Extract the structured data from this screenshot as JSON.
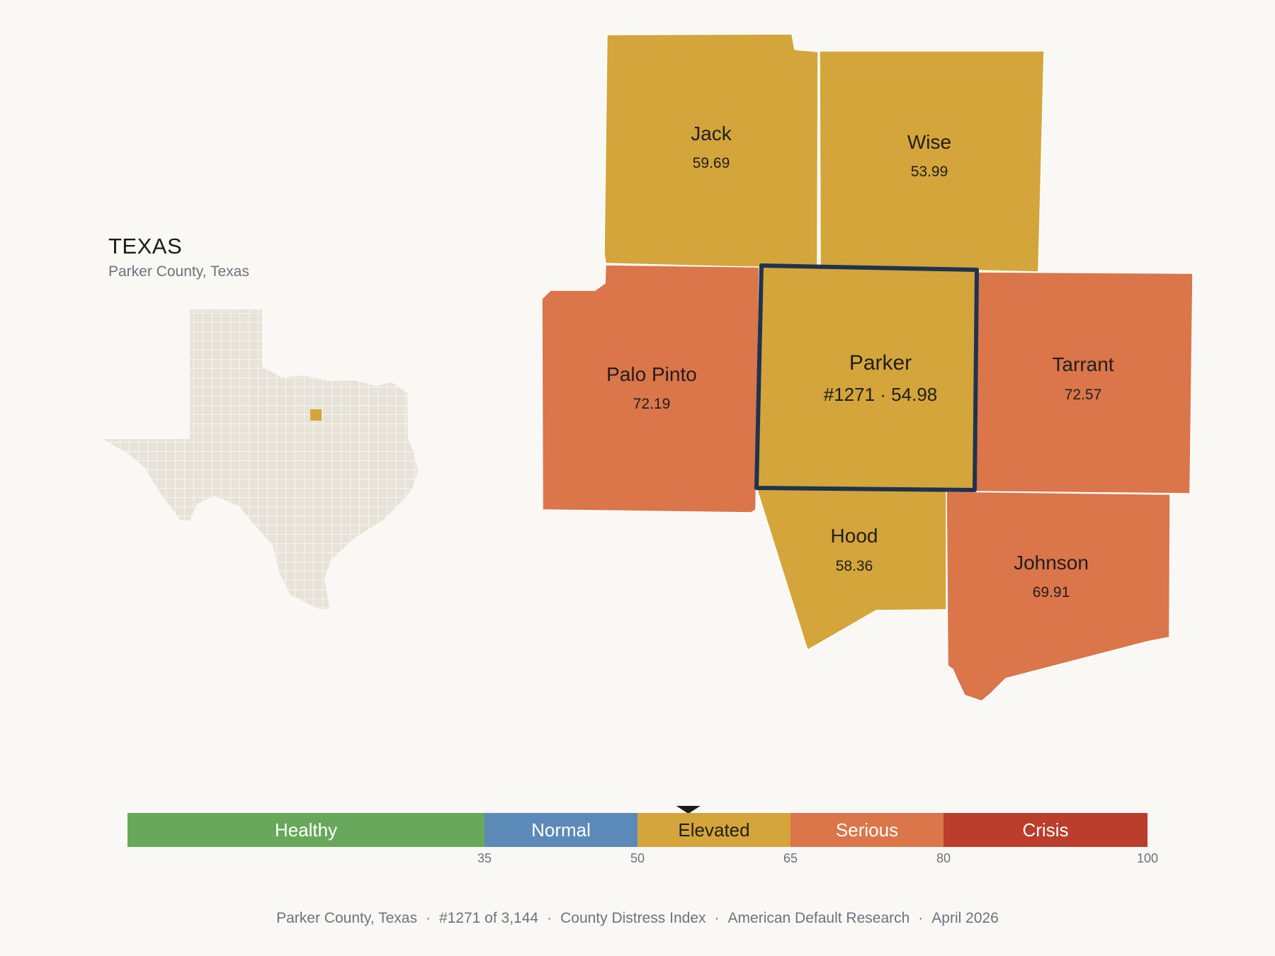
{
  "inset": {
    "state_title": "TEXAS",
    "subtitle": "Parker County, Texas"
  },
  "counties": [
    {
      "id": "jack",
      "name": "Jack",
      "value": "59.69",
      "color": "#d4a53a"
    },
    {
      "id": "wise",
      "name": "Wise",
      "value": "53.99",
      "color": "#d4a53a"
    },
    {
      "id": "palo-pinto",
      "name": "Palo Pinto",
      "value": "72.19",
      "color": "#db754a"
    },
    {
      "id": "parker",
      "name": "Parker",
      "value": "#1271 · 54.98",
      "color": "#d4a53a",
      "selected": true
    },
    {
      "id": "tarrant",
      "name": "Tarrant",
      "value": "72.57",
      "color": "#db754a"
    },
    {
      "id": "hood",
      "name": "Hood",
      "value": "58.36",
      "color": "#d4a53a"
    },
    {
      "id": "johnson",
      "name": "Johnson",
      "value": "69.91",
      "color": "#db754a"
    }
  ],
  "selected_outline_color": "#1f3350",
  "scale": {
    "min": 0,
    "max": 100,
    "marker_value": 54.98,
    "bands": [
      {
        "label": "Healthy",
        "from": 0,
        "to": 35,
        "color": "#67a85a"
      },
      {
        "label": "Normal",
        "from": 35,
        "to": 50,
        "color": "#5b8ab9"
      },
      {
        "label": "Elevated",
        "from": 50,
        "to": 65,
        "color": "#d4a53a"
      },
      {
        "label": "Serious",
        "from": 65,
        "to": 80,
        "color": "#db754a"
      },
      {
        "label": "Crisis",
        "from": 80,
        "to": 100,
        "color": "#bb3d2c"
      }
    ],
    "ticks": [
      "35",
      "50",
      "65",
      "80",
      "100"
    ]
  },
  "footer": {
    "county": "Parker County, Texas",
    "rank": "#1271 of 3,144",
    "index": "County Distress Index",
    "source": "American Default Research",
    "date": "April 2026"
  },
  "colors": {
    "background": "#faf8f4",
    "state_fill": "#e8e3d8",
    "state_lines": "#ffffff"
  }
}
